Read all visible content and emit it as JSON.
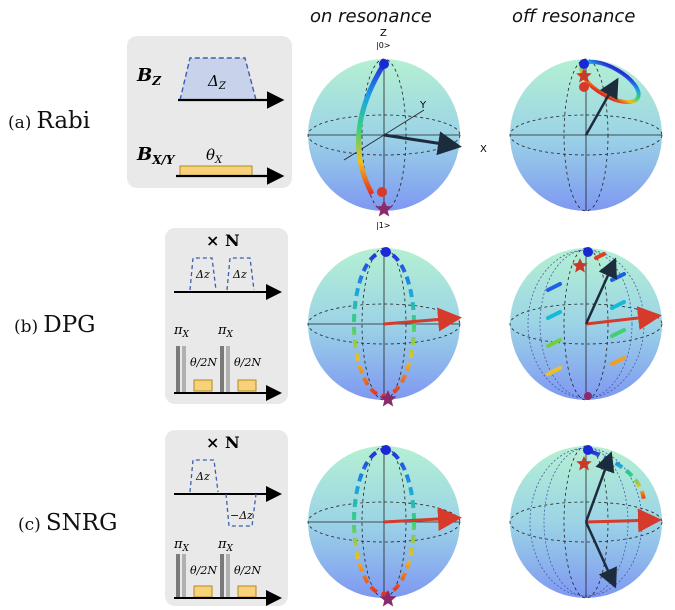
{
  "columns": {
    "left": "on resonance",
    "right": "off resonance"
  },
  "rows": [
    {
      "tag": "(a)",
      "name": "Rabi"
    },
    {
      "tag": "(b)",
      "name": "DPG"
    },
    {
      "tag": "(c)",
      "name": "SNRG"
    }
  ],
  "axes": {
    "z": "Z",
    "zero": "|0>",
    "one": "|1>",
    "x": "X",
    "y": "Y"
  },
  "rabi_seq": {
    "bz": "B",
    "bz_sub": "Z",
    "bxy": "B",
    "bxy_sub": "X/Y",
    "delta": "Δ",
    "delta_sub": "Z",
    "theta": "θ",
    "theta_sub": "X"
  },
  "pulse": {
    "times_n": "× N",
    "delta_z": "Δz",
    "neg_delta_z": "−Δz",
    "pi_x": "π",
    "pi_sub": "X",
    "theta_frac": "θ/2N",
    "frac_sub": "x"
  },
  "colors": {
    "sphere_top": "#a8e8d0",
    "sphere_bottom": "#7a9cf0",
    "box": "#e9e9e9",
    "dash": "#3a5fb0",
    "pulse_fill": "#f7d27a",
    "red_vector": "#d63a2a",
    "dark_vector": "#1c2c3c"
  }
}
